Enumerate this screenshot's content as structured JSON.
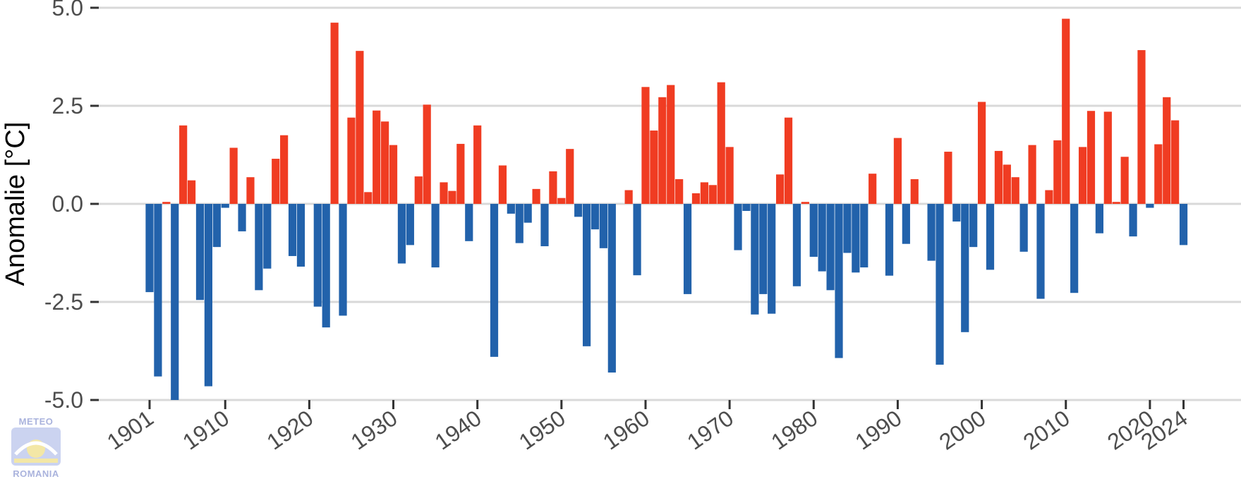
{
  "chart_data": {
    "type": "bar",
    "ylabel": "Anomalie [°C]",
    "ylim": [
      -5.0,
      5.0
    ],
    "y_ticks": [
      {
        "value": 5.0,
        "label": "5.0"
      },
      {
        "value": 2.5,
        "label": "2.5"
      },
      {
        "value": 0.0,
        "label": "0.0"
      },
      {
        "value": -2.5,
        "label": "-2.5"
      },
      {
        "value": -5.0,
        "label": "-5.0"
      }
    ],
    "x_tick_years": [
      "1901",
      "1910",
      "1920",
      "1930",
      "1940",
      "1950",
      "1960",
      "1970",
      "1980",
      "1990",
      "2000",
      "2010",
      "2020",
      "2024"
    ],
    "grid": true,
    "legend": "none",
    "colors": {
      "positive": "#f03c22",
      "negative": "#2262ab",
      "grid": "#d9d9d9",
      "tick": "#4d4d4d"
    },
    "x_start_year": 1901,
    "values": [
      -2.25,
      -4.4,
      0.05,
      -5.0,
      2.0,
      0.6,
      -2.45,
      -4.65,
      -1.1,
      -0.1,
      1.43,
      -0.7,
      0.68,
      -2.2,
      -1.65,
      1.15,
      1.75,
      -1.33,
      -1.6,
      0.0,
      -2.62,
      -3.15,
      4.62,
      -2.85,
      2.2,
      3.9,
      0.3,
      2.38,
      2.1,
      1.5,
      -1.52,
      -1.05,
      0.7,
      2.53,
      -1.62,
      0.55,
      0.33,
      1.53,
      -0.95,
      2.0,
      0.0,
      -3.9,
      0.98,
      -0.25,
      -1.0,
      -0.48,
      0.38,
      -1.08,
      0.83,
      0.15,
      1.4,
      -0.33,
      -3.63,
      -0.65,
      -1.13,
      -4.3,
      0.0,
      0.35,
      -1.82,
      2.98,
      1.87,
      2.72,
      3.03,
      0.63,
      -2.3,
      0.27,
      0.55,
      0.48,
      3.1,
      1.45,
      -1.18,
      -0.18,
      -2.82,
      -2.3,
      -2.8,
      0.75,
      2.2,
      -2.1,
      0.05,
      -1.35,
      -1.72,
      -2.2,
      -3.93,
      -1.25,
      -1.75,
      -1.62,
      0.77,
      0.0,
      -1.83,
      1.68,
      -1.02,
      0.63,
      0.0,
      -1.45,
      -4.1,
      1.33,
      -0.45,
      -3.27,
      -1.1,
      2.6,
      -1.68,
      1.35,
      1.0,
      0.68,
      -1.22,
      1.5,
      -2.42,
      0.35,
      1.62,
      4.72,
      -2.27,
      1.45,
      2.37,
      -0.75,
      2.35,
      0.05,
      1.2,
      -0.83,
      3.92,
      -0.1,
      1.52,
      2.72,
      2.13,
      -1.05
    ]
  },
  "logo": {
    "top_text": "METEO",
    "bottom_text": "ROMANIA"
  }
}
